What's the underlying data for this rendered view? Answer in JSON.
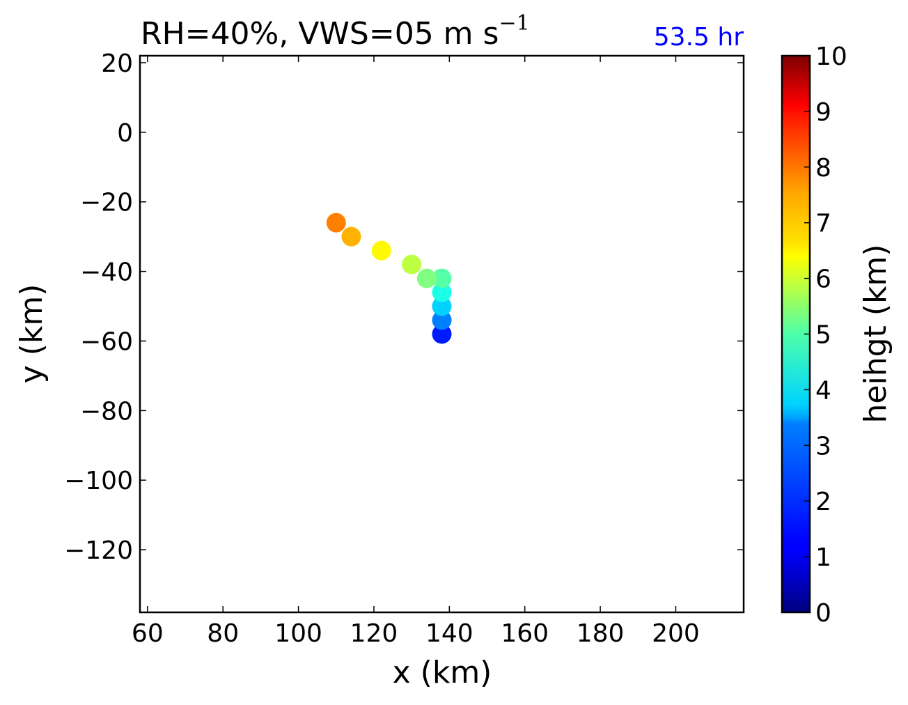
{
  "chart_data": {
    "type": "scatter",
    "title": "RH=40%, VWS=05 m s",
    "title_sup": "−1",
    "time_label": "53.5 hr",
    "time_color": "#0000ff",
    "xlabel": "x (km)",
    "ylabel": "y (km)",
    "xlim": [
      58,
      218
    ],
    "ylim": [
      -138,
      22
    ],
    "xticks": [
      60,
      80,
      100,
      120,
      140,
      160,
      180,
      200
    ],
    "yticks": [
      20,
      0,
      -20,
      -40,
      -60,
      -80,
      -100,
      -120
    ],
    "xtick_labels": [
      "60",
      "80",
      "100",
      "120",
      "140",
      "160",
      "180",
      "200"
    ],
    "ytick_labels": [
      "20",
      "0",
      "−20",
      "−40",
      "−60",
      "−80",
      "−100",
      "−120"
    ],
    "points": [
      {
        "x": 138,
        "y": -58,
        "height": 1.5
      },
      {
        "x": 138,
        "y": -54,
        "height": 2.5
      },
      {
        "x": 138,
        "y": -50,
        "height": 3.3
      },
      {
        "x": 138,
        "y": -46,
        "height": 4.0
      },
      {
        "x": 138,
        "y": -42,
        "height": 4.6
      },
      {
        "x": 134,
        "y": -42,
        "height": 5.0
      },
      {
        "x": 130,
        "y": -38,
        "height": 5.6
      },
      {
        "x": 122,
        "y": -34,
        "height": 6.3
      },
      {
        "x": 114,
        "y": -30,
        "height": 7.0
      },
      {
        "x": 110,
        "y": -26,
        "height": 7.5
      }
    ],
    "colorbar": {
      "label": "heihgt (km)",
      "range": [
        0,
        10
      ],
      "ticks": [
        0,
        1,
        2,
        3,
        4,
        5,
        6,
        7,
        8,
        9,
        10
      ],
      "tick_labels": [
        "0",
        "1",
        "2",
        "3",
        "4",
        "5",
        "6",
        "7",
        "8",
        "9",
        "10"
      ],
      "colormap": "jet"
    },
    "grid": false
  }
}
